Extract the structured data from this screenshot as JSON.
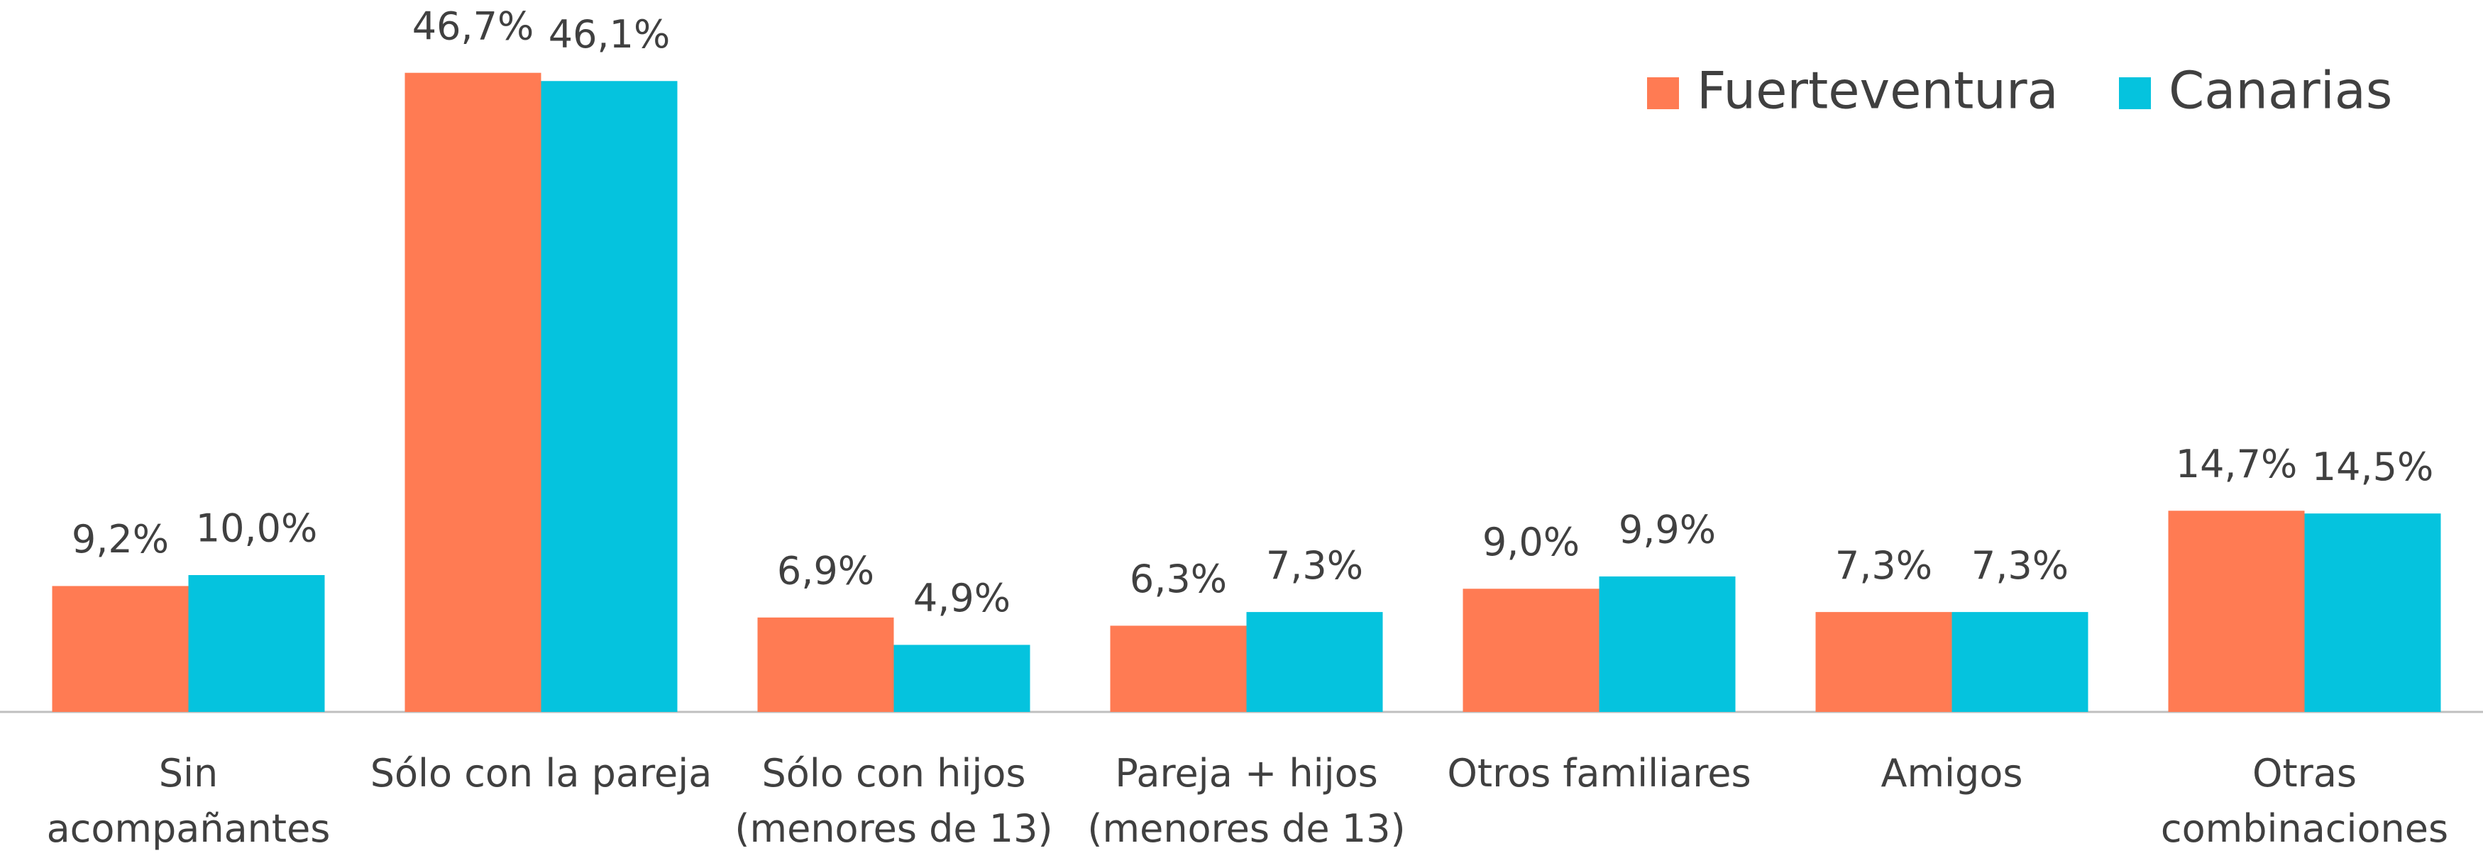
{
  "chart_data": {
    "type": "bar",
    "categories": [
      "Sin\nacompañantes",
      "Sólo con la pareja",
      "Sólo con hijos\n(menores de 13)",
      "Pareja + hijos\n(menores de 13)",
      "Otros familiares",
      "Amigos",
      "Otras\ncombinaciones"
    ],
    "series": [
      {
        "name": "Fuerteventura",
        "color": "#ff7b53",
        "values": [
          9.2,
          46.7,
          6.9,
          6.3,
          9.0,
          7.3,
          14.7
        ],
        "value_labels": [
          "9,2%",
          "46,7%",
          "6,9%",
          "6,3%",
          "9,0%",
          "7,3%",
          "14,7%"
        ]
      },
      {
        "name": "Canarias",
        "color": "#05c3de",
        "values": [
          10.0,
          46.1,
          4.9,
          7.3,
          9.9,
          7.3,
          14.5
        ],
        "value_labels": [
          "10,0%",
          "46,1%",
          "4,9%",
          "7,3%",
          "9,9%",
          "7,3%",
          "14,5%"
        ]
      }
    ],
    "ylim": [
      0,
      50
    ],
    "legend": "upper right"
  }
}
